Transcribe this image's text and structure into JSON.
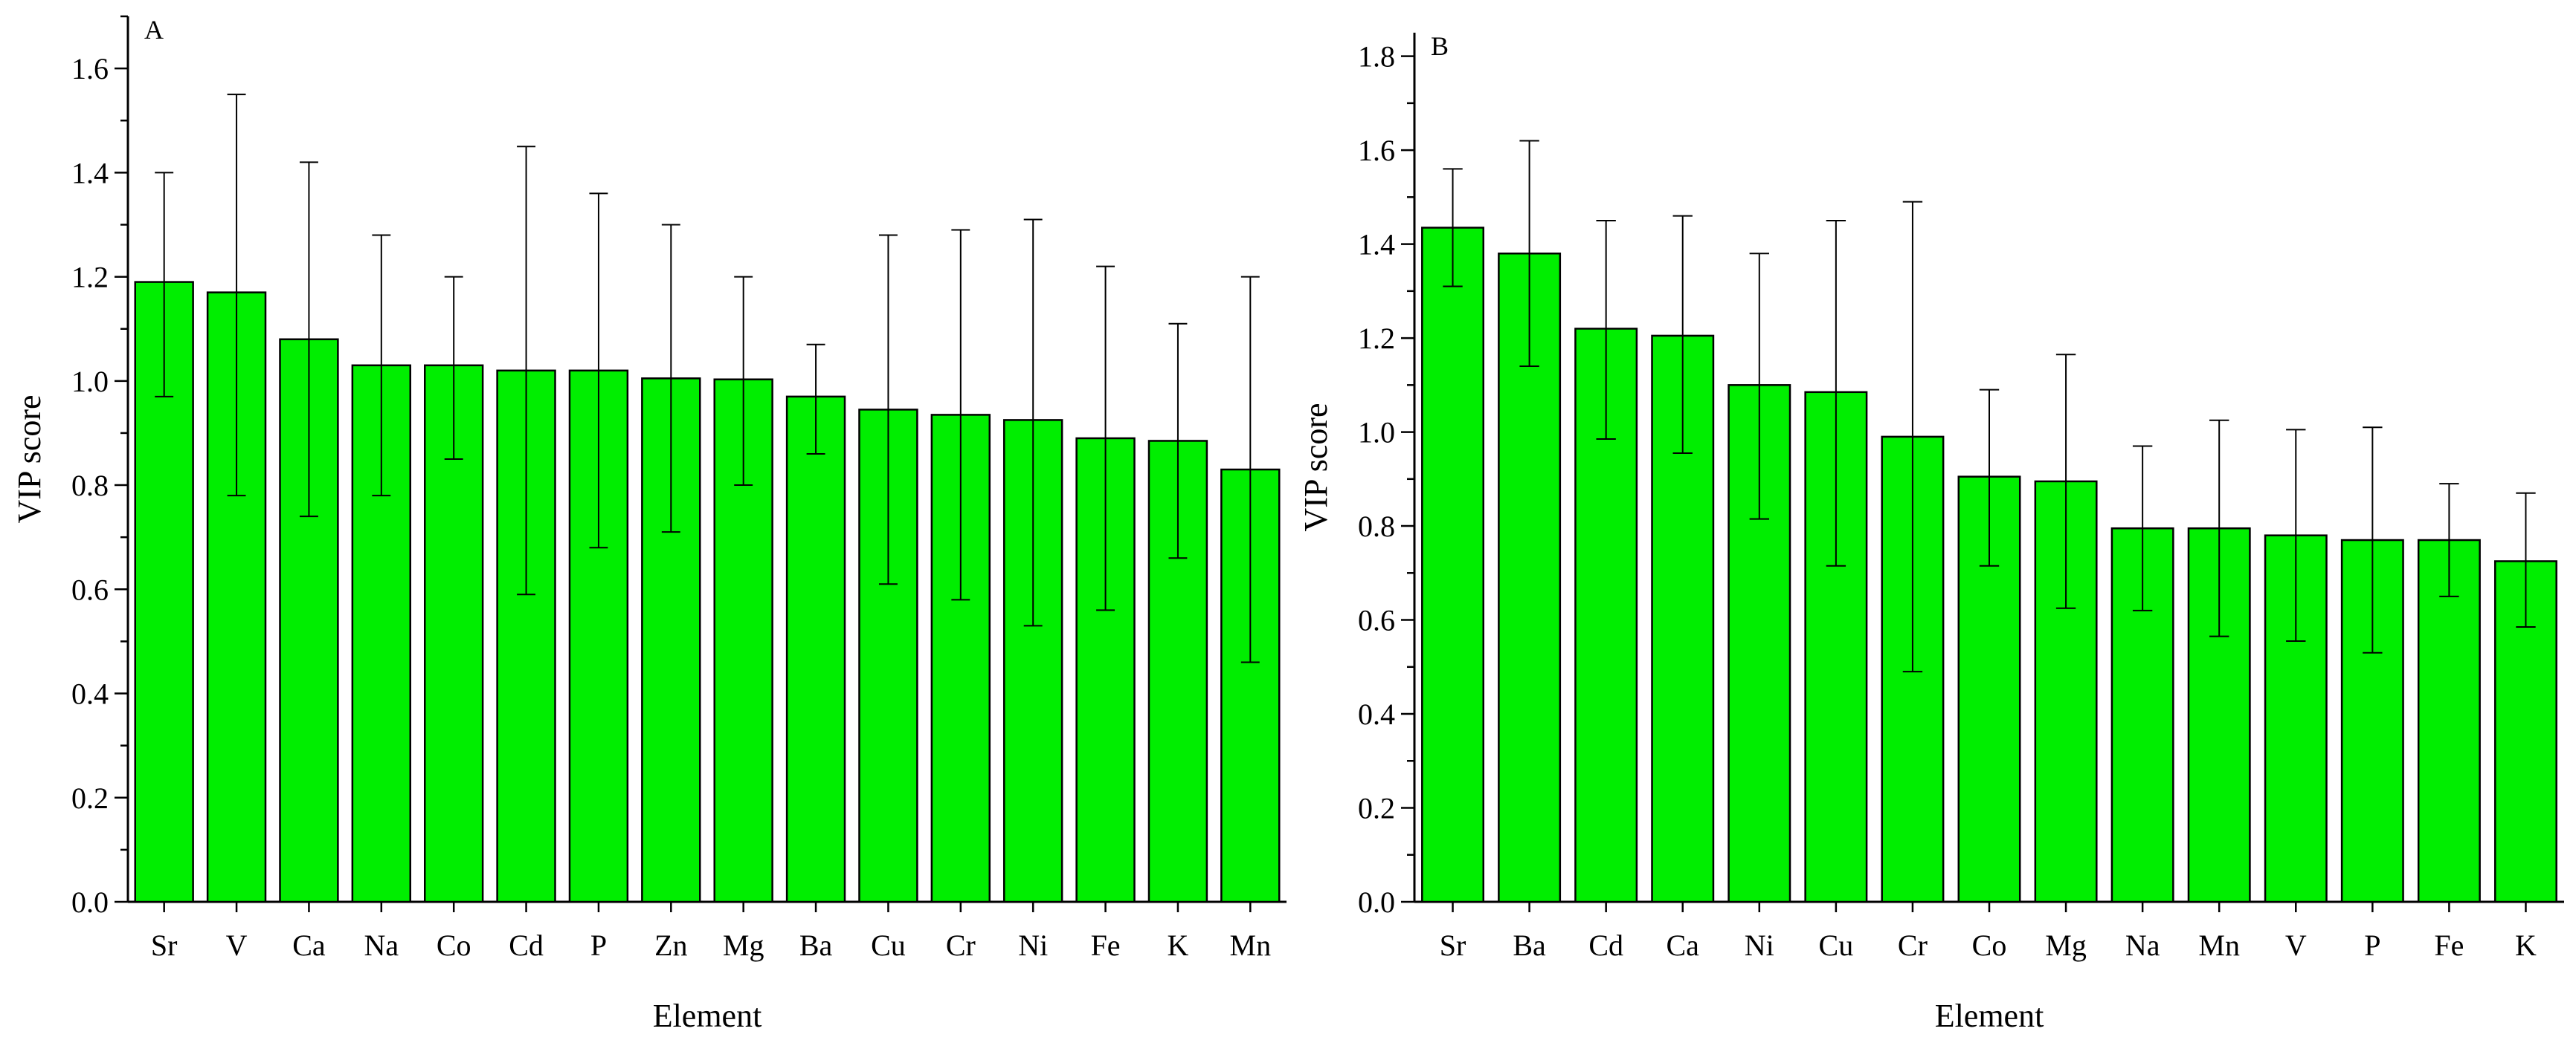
{
  "chart_data": [
    {
      "type": "bar",
      "panel_label": "A",
      "categories": [
        "Sr",
        "V",
        "Ca",
        "Na",
        "Co",
        "Cd",
        "P",
        "Zn",
        "Mg",
        "Ba",
        "Cu",
        "Cr",
        "Ni",
        "Fe",
        "K",
        "Mn"
      ],
      "values": [
        1.19,
        1.17,
        1.08,
        1.03,
        1.03,
        1.02,
        1.02,
        1.005,
        1.003,
        0.97,
        0.945,
        0.935,
        0.925,
        0.89,
        0.885,
        0.83
      ],
      "error_upper": [
        1.4,
        1.55,
        1.42,
        1.28,
        1.2,
        1.45,
        1.36,
        1.3,
        1.2,
        1.07,
        1.28,
        1.29,
        1.31,
        1.22,
        1.11,
        1.2
      ],
      "error_lower": [
        0.97,
        0.78,
        0.74,
        0.78,
        0.85,
        0.59,
        0.68,
        0.71,
        0.8,
        0.86,
        0.61,
        0.58,
        0.53,
        0.56,
        0.66,
        0.46
      ],
      "xlabel": "Element",
      "ylabel": "VIP score",
      "ylim": [
        0,
        1.7
      ],
      "yticks": [
        "0.0",
        "0.2",
        "0.4",
        "0.6",
        "0.8",
        "1.0",
        "1.2",
        "1.4",
        "1.6"
      ],
      "ytick_values": [
        0,
        0.2,
        0.4,
        0.6,
        0.8,
        1.0,
        1.2,
        1.4,
        1.6
      ],
      "bar_color": "#00ee00",
      "grid": false
    },
    {
      "type": "bar",
      "panel_label": "B",
      "categories": [
        "Sr",
        "Ba",
        "Cd",
        "Ca",
        "Ni",
        "Cu",
        "Cr",
        "Co",
        "Mg",
        "Na",
        "Mn",
        "V",
        "P",
        "Fe",
        "K"
      ],
      "values": [
        1.435,
        1.38,
        1.22,
        1.205,
        1.1,
        1.085,
        0.99,
        0.905,
        0.895,
        0.795,
        0.795,
        0.78,
        0.77,
        0.77,
        0.725
      ],
      "error_upper": [
        1.56,
        1.62,
        1.45,
        1.46,
        1.38,
        1.45,
        1.49,
        1.09,
        1.165,
        0.97,
        1.025,
        1.005,
        1.01,
        0.89,
        0.87
      ],
      "error_lower": [
        1.31,
        1.14,
        0.985,
        0.955,
        0.815,
        0.715,
        0.49,
        0.715,
        0.625,
        0.62,
        0.565,
        0.555,
        0.53,
        0.65,
        0.585
      ],
      "xlabel": "Element",
      "ylabel": "VIP score",
      "ylim": [
        0,
        1.85
      ],
      "yticks": [
        "0.0",
        "0.2",
        "0.4",
        "0.6",
        "0.8",
        "1.0",
        "1.2",
        "1.4",
        "1.6",
        "1.8"
      ],
      "ytick_values": [
        0,
        0.2,
        0.4,
        0.6,
        0.8,
        1.0,
        1.2,
        1.4,
        1.6,
        1.8
      ],
      "bar_color": "#00ee00",
      "grid": false
    }
  ]
}
